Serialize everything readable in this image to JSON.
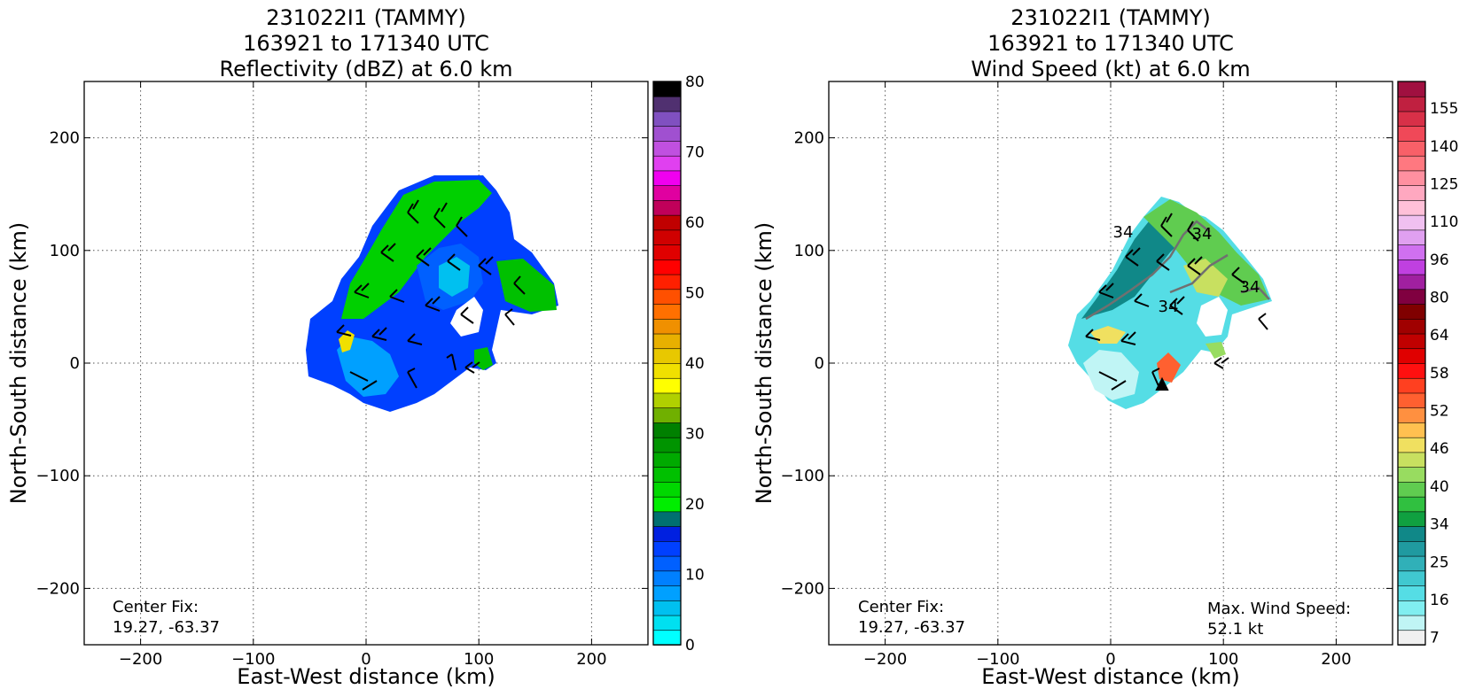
{
  "chart_data": [
    {
      "type": "heatmap",
      "title_lines": [
        "231022I1 (TAMMY)",
        "163921 to 171340 UTC",
        "Reflectivity (dBZ) at 6.0 km"
      ],
      "xlabel": "East-West distance (km)",
      "ylabel": "North-South distance (km)",
      "xlim": [
        -250,
        250
      ],
      "ylim": [
        -250,
        250
      ],
      "xticks": [
        -200,
        -100,
        0,
        100,
        200
      ],
      "yticks": [
        -200,
        -100,
        0,
        100,
        200
      ],
      "xtick_labels": [
        "−200",
        "−100",
        "0",
        "100",
        "200"
      ],
      "ytick_labels": [
        "−200",
        "−100",
        "0",
        "100",
        "200"
      ],
      "grid": true,
      "center_fix_label": "Center Fix:",
      "center_fix_value": "19.27, -63.37",
      "colorbar": {
        "min": 0,
        "max": 80,
        "ticks": [
          0,
          10,
          20,
          30,
          40,
          50,
          60,
          70,
          80
        ],
        "tick_labels": [
          "0",
          "10",
          "20",
          "30",
          "40",
          "50",
          "60",
          "70",
          "80"
        ],
        "colors": [
          "#00ffff",
          "#00e0f0",
          "#00c0f0",
          "#00a0ff",
          "#0080ff",
          "#0060ff",
          "#0040ff",
          "#0020e0",
          "#007070",
          "#00ee00",
          "#00d800",
          "#00c000",
          "#00aa00",
          "#009400",
          "#008000",
          "#70b000",
          "#b0d000",
          "#ffff00",
          "#f0e000",
          "#e8c800",
          "#e8b000",
          "#f09000",
          "#ff7000",
          "#ff5000",
          "#ff2000",
          "#ff0000",
          "#e00000",
          "#d00000",
          "#c00000",
          "#c0005a",
          "#e000a0",
          "#f000f0",
          "#e040f0",
          "#c050e0",
          "#a050d0",
          "#8050c0",
          "#503070",
          "#000000"
        ]
      }
    },
    {
      "type": "heatmap",
      "title_lines": [
        "231022I1 (TAMMY)",
        "163921 to 171340 UTC",
        "Wind Speed (kt) at 6.0 km"
      ],
      "xlabel": "East-West distance (km)",
      "ylabel": "North-South distance (km)",
      "xlim": [
        -250,
        250
      ],
      "ylim": [
        -250,
        250
      ],
      "xticks": [
        -200,
        -100,
        0,
        100,
        200
      ],
      "yticks": [
        -200,
        -100,
        0,
        100,
        200
      ],
      "xtick_labels": [
        "−200",
        "−100",
        "0",
        "100",
        "200"
      ],
      "ytick_labels": [
        "−200",
        "−100",
        "0",
        "100",
        "200"
      ],
      "grid": true,
      "center_fix_label": "Center Fix:",
      "center_fix_value": "19.27, -63.37",
      "max_wind_label": "Max. Wind Speed:",
      "max_wind_value": "52.1 kt",
      "contour_labels": [
        "34",
        "34",
        "34",
        "34"
      ],
      "colorbar": {
        "tick_labels": [
          "7",
          "16",
          "25",
          "34",
          "40",
          "46",
          "52",
          "58",
          "64",
          "80",
          "96",
          "110",
          "125",
          "140",
          "155"
        ],
        "colors": [
          "#f0f0f0",
          "#c0f5f5",
          "#80eef0",
          "#55dde5",
          "#40c8d0",
          "#30b0b8",
          "#209aa0",
          "#108888",
          "#10a040",
          "#30c040",
          "#60cc50",
          "#98dc60",
          "#c8e060",
          "#f0e060",
          "#ffc050",
          "#ff9040",
          "#ff6030",
          "#ff4020",
          "#ff1010",
          "#e00000",
          "#c00000",
          "#a00000",
          "#800000",
          "#800040",
          "#a020a0",
          "#c040e0",
          "#d070f0",
          "#e0a0f0",
          "#f0c0f0",
          "#ffc0d8",
          "#ffa8c0",
          "#ff90a0",
          "#ff7880",
          "#f86068",
          "#f04858",
          "#d83048",
          "#c02040",
          "#a01040"
        ]
      }
    }
  ]
}
